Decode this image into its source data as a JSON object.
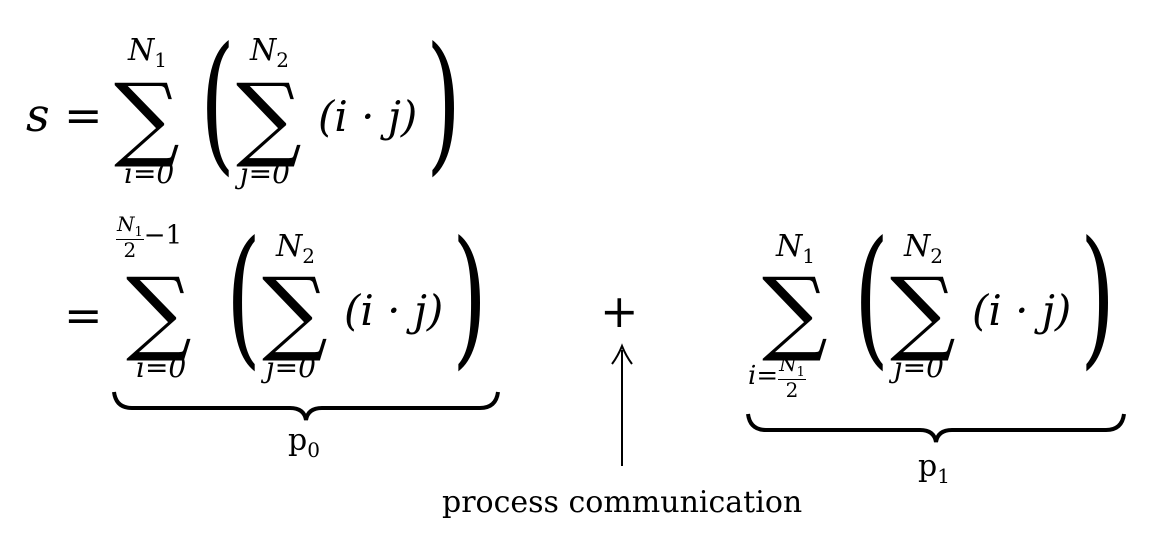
{
  "line1": {
    "lhs": "s",
    "eq": "=",
    "outer_upper": "N1",
    "outer_lower": "i=0",
    "inner_upper": "N2",
    "inner_lower": "j=0",
    "summand": "(i · j)"
  },
  "line2": {
    "eq": "=",
    "left_sum": {
      "upper_num": "N1",
      "upper_den": "2",
      "upper_rest": "−1",
      "lower": "i=0",
      "inner_upper": "N2",
      "inner_lower": "j=0",
      "summand": "(i · j)",
      "brace_label": "p0"
    },
    "plus": "+",
    "right_sum": {
      "upper": "N1",
      "lower_prefix": "i=",
      "lower_num": "N1",
      "lower_den": "2",
      "inner_upper": "N2",
      "inner_lower": "j=0",
      "summand": "(i · j)",
      "brace_label": "p1"
    }
  },
  "annotation": {
    "arrow": "up-arrow",
    "label": "process communication"
  }
}
